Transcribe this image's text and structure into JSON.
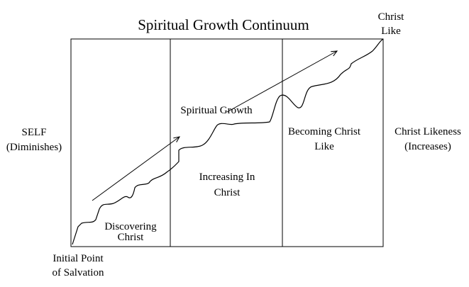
{
  "title": "Spiritual Growth Continuum",
  "labels": [
    {
      "lines": [
        "Christ",
        "Like"
      ]
    },
    {
      "lines": [
        "SELF",
        "(Diminishes)"
      ]
    },
    {
      "lines": [
        "Christ Likeness",
        "(Increases)"
      ]
    },
    {
      "lines": [
        "Spiritual Growth"
      ]
    },
    {
      "lines": [
        "Becoming Christ",
        "Like"
      ]
    },
    {
      "lines": [
        "Increasing In",
        "Christ"
      ]
    },
    {
      "lines": [
        "Discovering",
        "Christ"
      ]
    },
    {
      "lines": [
        "Initial Point",
        "of  Salvation"
      ]
    }
  ]
}
